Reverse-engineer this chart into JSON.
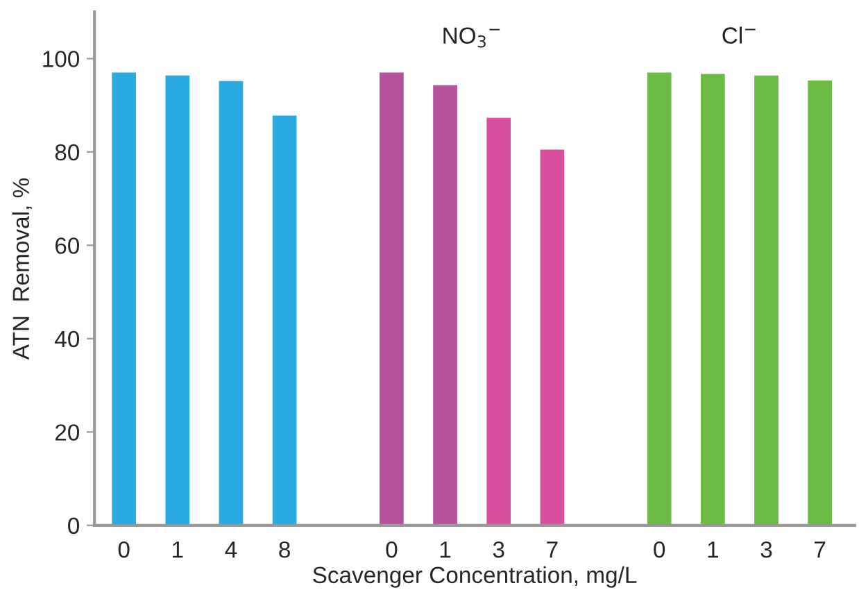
{
  "chart_data": {
    "type": "bar",
    "xlabel": "Scavenger Concentration, mg/L",
    "ylabel": "ATN  Removal, %",
    "categories": [
      "0",
      "1",
      "4",
      "8",
      null,
      "0",
      "1",
      "3",
      "7",
      null,
      "0",
      "1",
      "3",
      "7"
    ],
    "values": [
      97,
      96.4,
      95.2,
      87.8,
      null,
      97,
      94.3,
      87.3,
      80.5,
      null,
      97,
      96.7,
      96.4,
      95.3
    ],
    "colors": [
      "#29abe2",
      "#29abe2",
      "#29abe2",
      "#29abe2",
      null,
      "#b5529e",
      "#b5529e",
      "#d6509d",
      "#d6509d",
      null,
      "#6cbb45",
      "#6cbb45",
      "#6cbb45",
      "#6cbb45"
    ],
    "annotations": [
      "NO$_{3}$$^{−}$",
      "Cl$^{−}$"
    ],
    "ylim": [
      0,
      110
    ],
    "yticks": [
      0,
      20,
      40,
      60,
      80,
      100
    ],
    "grid": false,
    "legend": false
  }
}
